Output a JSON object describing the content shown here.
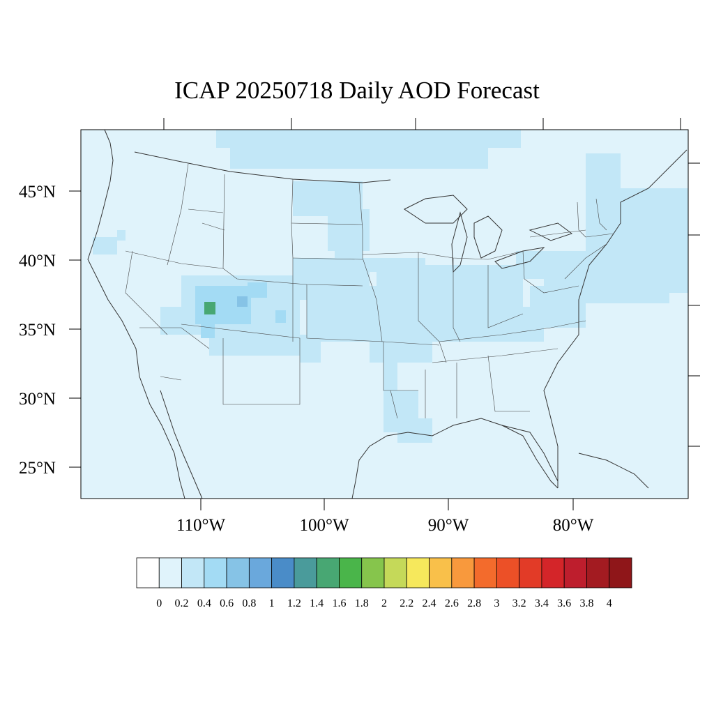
{
  "title": "ICAP 20250718 Daily AOD Forecast",
  "map": {
    "lat_labels": [
      "45°N",
      "40°N",
      "35°N",
      "30°N",
      "25°N"
    ],
    "lon_labels": [
      "110°W",
      "100°W",
      "90°W",
      "80°W"
    ],
    "background_color": "#e0f3fb",
    "land_boundary_color": "#333333"
  },
  "colorbar": {
    "labels": [
      "0",
      "0.2",
      "0.4",
      "0.6",
      "0.8",
      "1",
      "1.2",
      "1.4",
      "1.6",
      "1.8",
      "2",
      "2.2",
      "2.4",
      "2.6",
      "2.8",
      "3",
      "3.2",
      "3.4",
      "3.6",
      "3.8",
      "4"
    ],
    "colors": [
      "#ffffff",
      "#e0f3fb",
      "#c2e7f7",
      "#a3dbf4",
      "#86c3e6",
      "#6aa8dc",
      "#4a8cc8",
      "#4a9b9b",
      "#48a773",
      "#4ab54a",
      "#86c54c",
      "#c5d959",
      "#f6e85c",
      "#f9c04a",
      "#f8993d",
      "#f36b2c",
      "#ec5027",
      "#e23b27",
      "#d42529",
      "#be1e2d",
      "#a31b21",
      "#8f1619"
    ]
  }
}
